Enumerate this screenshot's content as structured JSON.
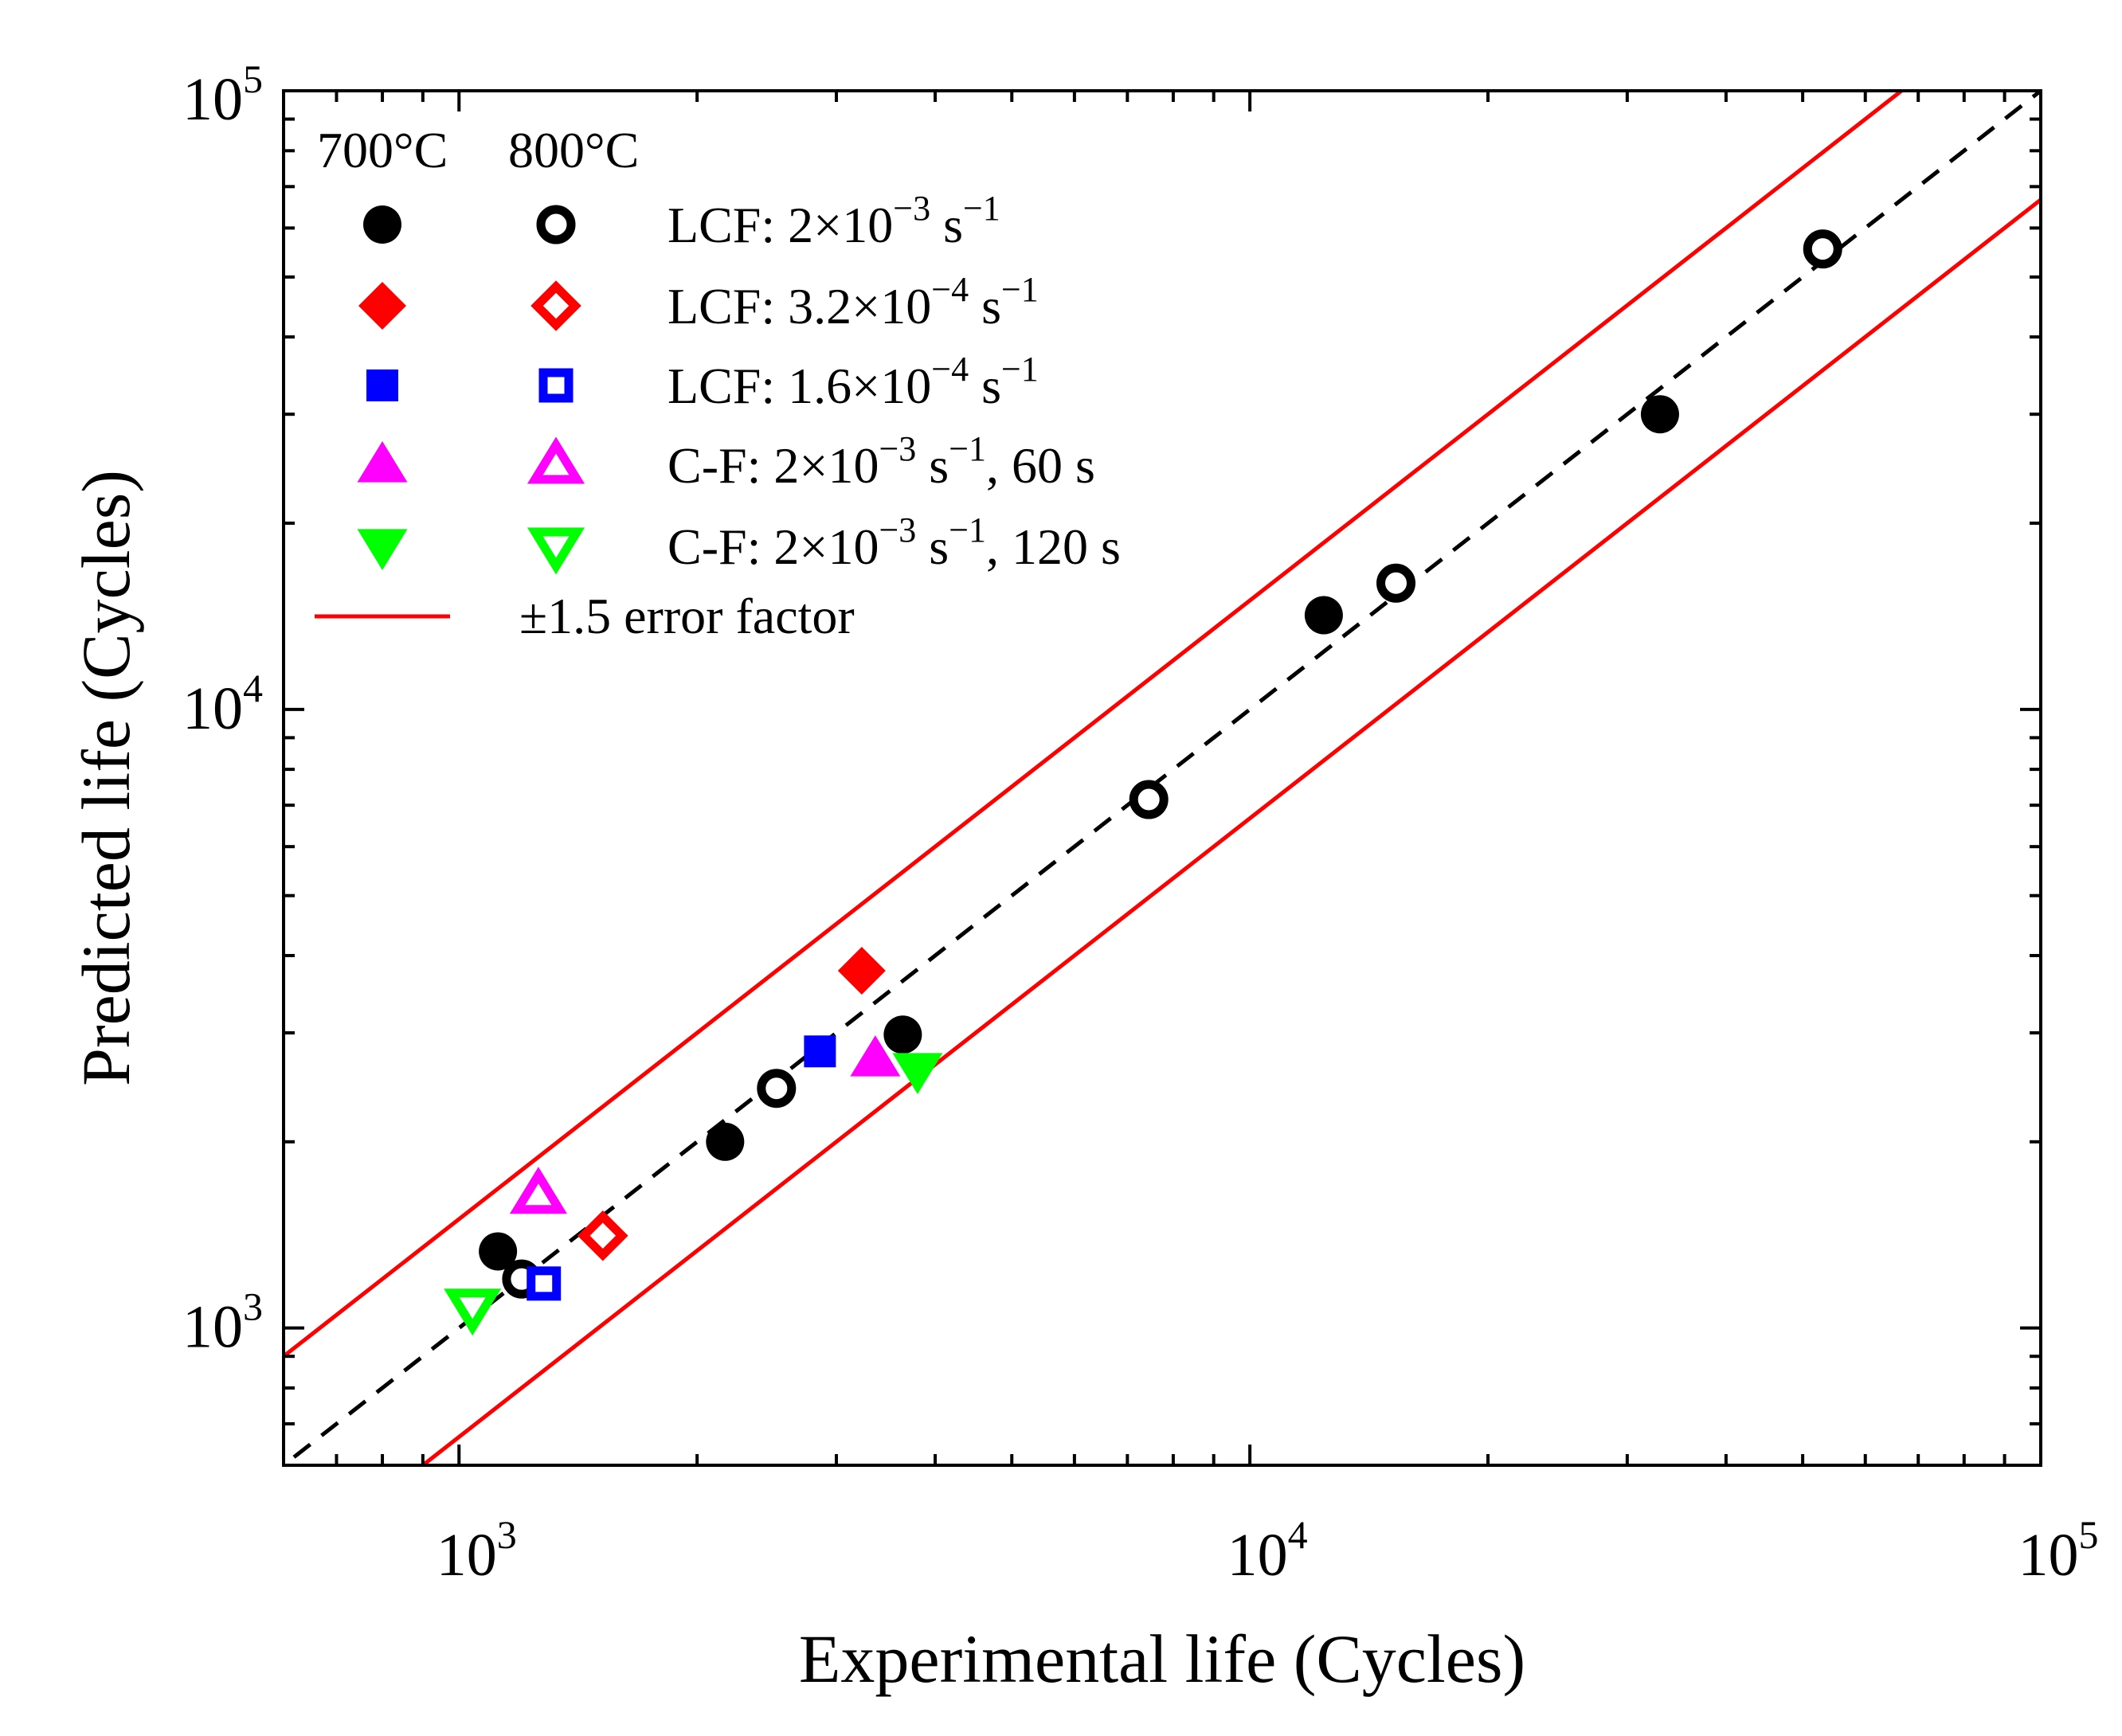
{
  "chart_data": {
    "type": "scatter",
    "xscale": "log",
    "yscale": "log",
    "xlim": [
      600,
      100000
    ],
    "ylim": [
      600,
      100000
    ],
    "xlabel": "Experimental life (Cycles)",
    "ylabel": "Predicted life (Cycles)",
    "x_ticks": [
      {
        "value": 1000,
        "base": "10",
        "exp": "3"
      },
      {
        "value": 10000,
        "base": "10",
        "exp": "4"
      },
      {
        "value": 100000,
        "base": "10",
        "exp": "5"
      }
    ],
    "y_ticks": [
      {
        "value": 1000,
        "base": "10",
        "exp": "3"
      },
      {
        "value": 10000,
        "base": "10",
        "exp": "4"
      },
      {
        "value": 100000,
        "base": "10",
        "exp": "5"
      }
    ],
    "legend": {
      "placement": "top-left",
      "column_headers": [
        "700°C",
        "800°C"
      ],
      "entries": [
        {
          "id": "lcf-2e-3",
          "label_parts": [
            "LCF: 2×10",
            "−3",
            " s",
            "−1",
            ""
          ],
          "marker": "circle",
          "color": "#000000"
        },
        {
          "id": "lcf-3.2e-4",
          "label_parts": [
            "LCF: 3.2×10",
            "−4",
            " s",
            "−1",
            ""
          ],
          "marker": "diamond",
          "color": "#ff0000"
        },
        {
          "id": "lcf-1.6e-4",
          "label_parts": [
            "LCF: 1.6×10",
            "−4",
            " s",
            "−1",
            ""
          ],
          "marker": "square",
          "color": "#0000ff"
        },
        {
          "id": "cf-60",
          "label_parts": [
            "C-F: 2×10",
            "−3",
            " s",
            "−1",
            ", 60 s"
          ],
          "marker": "triangle-up",
          "color": "#ff00ff"
        },
        {
          "id": "cf-120",
          "label_parts": [
            "C-F: 2×10",
            "−3",
            " s",
            "−1",
            ", 120 s"
          ],
          "marker": "triangle-down",
          "color": "#00ff00"
        }
      ],
      "line_entry": {
        "label": "±1.5 error factor",
        "color": "#ff0000"
      }
    },
    "reference_lines": [
      {
        "name": "1:1 line",
        "factor": 1,
        "style": "dashed",
        "color": "#000000"
      },
      {
        "name": "upper error band",
        "factor": 1.5,
        "style": "solid",
        "color": "#ff0000"
      },
      {
        "name": "lower error band",
        "factor": 0.6667,
        "style": "solid",
        "color": "#ff0000"
      }
    ],
    "series": [
      {
        "name": "LCF 2×10^-3 s^-1, 700°C",
        "marker": "circle",
        "filled": true,
        "color": "#000000",
        "points": [
          [
            1120,
            1330
          ],
          [
            2170,
            2000
          ],
          [
            3640,
            2980
          ],
          [
            12400,
            14200
          ],
          [
            33000,
            30000
          ]
        ]
      },
      {
        "name": "LCF 2×10^-3 s^-1, 800°C",
        "marker": "circle",
        "filled": false,
        "color": "#000000",
        "points": [
          [
            1200,
            1200
          ],
          [
            2520,
            2440
          ],
          [
            7450,
            7150
          ],
          [
            15300,
            16000
          ],
          [
            53000,
            55500
          ]
        ]
      },
      {
        "name": "LCF 3.2×10^-4 s^-1, 700°C",
        "marker": "diamond",
        "filled": true,
        "color": "#ff0000",
        "points": [
          [
            3230,
            3780
          ]
        ]
      },
      {
        "name": "LCF 3.2×10^-4 s^-1, 800°C",
        "marker": "diamond",
        "filled": false,
        "color": "#ff0000",
        "points": [
          [
            1520,
            1410
          ]
        ]
      },
      {
        "name": "LCF 1.6×10^-4 s^-1, 700°C",
        "marker": "square",
        "filled": true,
        "color": "#0000ff",
        "points": [
          [
            2860,
            2800
          ]
        ]
      },
      {
        "name": "LCF 1.6×10^-4 s^-1, 800°C",
        "marker": "square",
        "filled": false,
        "color": "#0000ff",
        "points": [
          [
            1280,
            1180
          ]
        ]
      },
      {
        "name": "C-F 60 s, 700°C",
        "marker": "triangle-up",
        "filled": true,
        "color": "#ff00ff",
        "points": [
          [
            3360,
            2720
          ]
        ]
      },
      {
        "name": "C-F 60 s, 800°C",
        "marker": "triangle-up",
        "filled": false,
        "color": "#ff00ff",
        "points": [
          [
            1260,
            1640
          ]
        ]
      },
      {
        "name": "C-F 120 s, 700°C",
        "marker": "triangle-down",
        "filled": true,
        "color": "#00ff00",
        "points": [
          [
            3800,
            2610
          ]
        ]
      },
      {
        "name": "C-F 120 s, 800°C",
        "marker": "triangle-down",
        "filled": false,
        "color": "#00ff00",
        "points": [
          [
            1040,
            1080
          ]
        ]
      }
    ]
  }
}
